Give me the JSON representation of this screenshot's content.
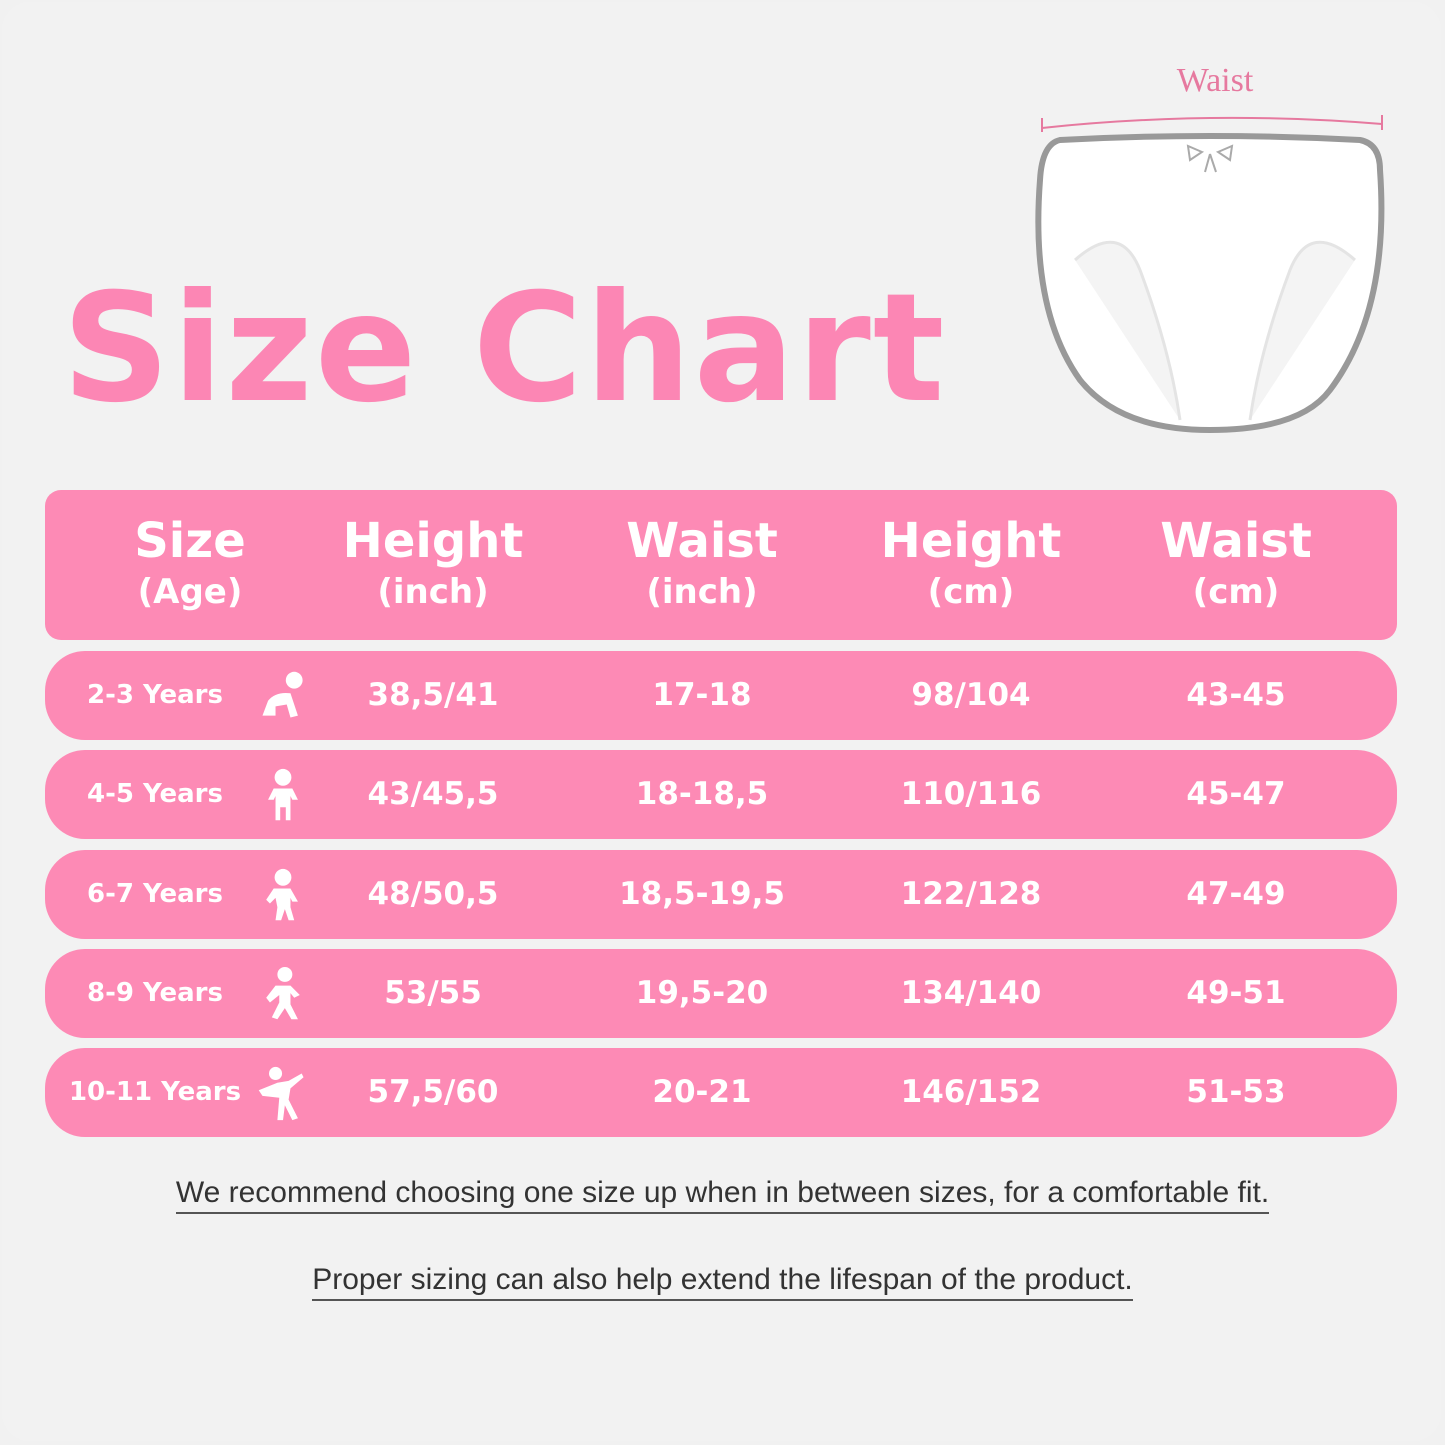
{
  "title": "Size Chart",
  "illustration": {
    "label": "Waist",
    "accent_color": "#e6799f"
  },
  "colors": {
    "pink": "#fd8ab5",
    "title_pink": "#fc86b4",
    "background": "#f2f2f2"
  },
  "table": {
    "headers": [
      {
        "title": "Size",
        "unit": "(Age)"
      },
      {
        "title": "Height",
        "unit": "(inch)"
      },
      {
        "title": "Waist",
        "unit": "(inch)"
      },
      {
        "title": "Height",
        "unit": "(cm)"
      },
      {
        "title": "Waist",
        "unit": "(cm)"
      }
    ],
    "rows": [
      {
        "size": "2-3 Years",
        "icon": "crawling-baby-icon",
        "height_in": "38,5/41",
        "waist_in": "17-18",
        "height_cm": "98/104",
        "waist_cm": "43-45"
      },
      {
        "size": "4-5 Years",
        "icon": "standing-toddler-icon",
        "height_in": "43/45,5",
        "waist_in": "18-18,5",
        "height_cm": "110/116",
        "waist_cm": "45-47"
      },
      {
        "size": "6-7 Years",
        "icon": "walking-child-icon",
        "height_in": "48/50,5",
        "waist_in": "18,5-19,5",
        "height_cm": "122/128",
        "waist_cm": "47-49"
      },
      {
        "size": "8-9 Years",
        "icon": "running-child-icon",
        "height_in": "53/55",
        "waist_in": "19,5-20",
        "height_cm": "134/140",
        "waist_cm": "49-51"
      },
      {
        "size": "10-11 Years",
        "icon": "dancing-child-icon",
        "height_in": "57,5/60",
        "waist_in": "20-21",
        "height_cm": "146/152",
        "waist_cm": "51-53"
      }
    ]
  },
  "notes": [
    "We  recommend choosing  one  size  up  when  in  between  sizes, for  a  comfortable  fit.",
    "Proper  sizing can  also  help  extend  the lifespan  of  the  product."
  ]
}
